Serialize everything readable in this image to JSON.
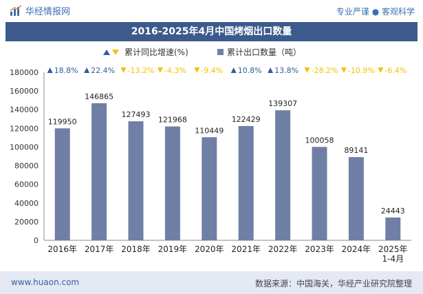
{
  "header": {
    "brand": "华经情报网",
    "tagline": "专业严谨 ● 客观科学"
  },
  "title": "2016-2025年4月中国烤烟出口数量",
  "footer": {
    "website": "www.huaon.com",
    "source": "数据来源：中国海关，华经产业研究院整理"
  },
  "icons": {
    "logo": "chart-logo-icon",
    "legend_growth": "up-down-triangle-icon",
    "legend_bar": "square-icon"
  },
  "colors": {
    "bar": "#6f7fa5",
    "title_bg": "#3d5a8c",
    "up": "#2e5f9a",
    "down": "#f2c200"
  },
  "chart_data": {
    "type": "bar",
    "categories": [
      "2016年",
      "2017年",
      "2018年",
      "2019年",
      "2020年",
      "2021年",
      "2022年",
      "2023年",
      "2024年",
      "2025年\n1-4月"
    ],
    "series": [
      {
        "name": "累计出口数量（吨）",
        "values": [
          119950,
          146865,
          127493,
          121968,
          110449,
          122429,
          139307,
          100058,
          89141,
          24443
        ]
      },
      {
        "name": "累计同比增速(%)",
        "values": [
          18.8,
          22.4,
          -13.2,
          -4.3,
          -9.4,
          10.8,
          13.8,
          -28.2,
          -10.9,
          -6.4
        ],
        "labels": [
          "18.8%",
          "22.4%",
          "-13.2%",
          "-4.3%",
          "-9.4%",
          "10.8%",
          "13.8%",
          "-28.2%",
          "-10.9%",
          "-6.4%"
        ]
      }
    ],
    "ylim": [
      0,
      180000
    ],
    "yticks": [
      0,
      20000,
      40000,
      60000,
      80000,
      100000,
      120000,
      140000,
      160000,
      180000
    ],
    "legend_position": "top-center",
    "grid": false
  }
}
